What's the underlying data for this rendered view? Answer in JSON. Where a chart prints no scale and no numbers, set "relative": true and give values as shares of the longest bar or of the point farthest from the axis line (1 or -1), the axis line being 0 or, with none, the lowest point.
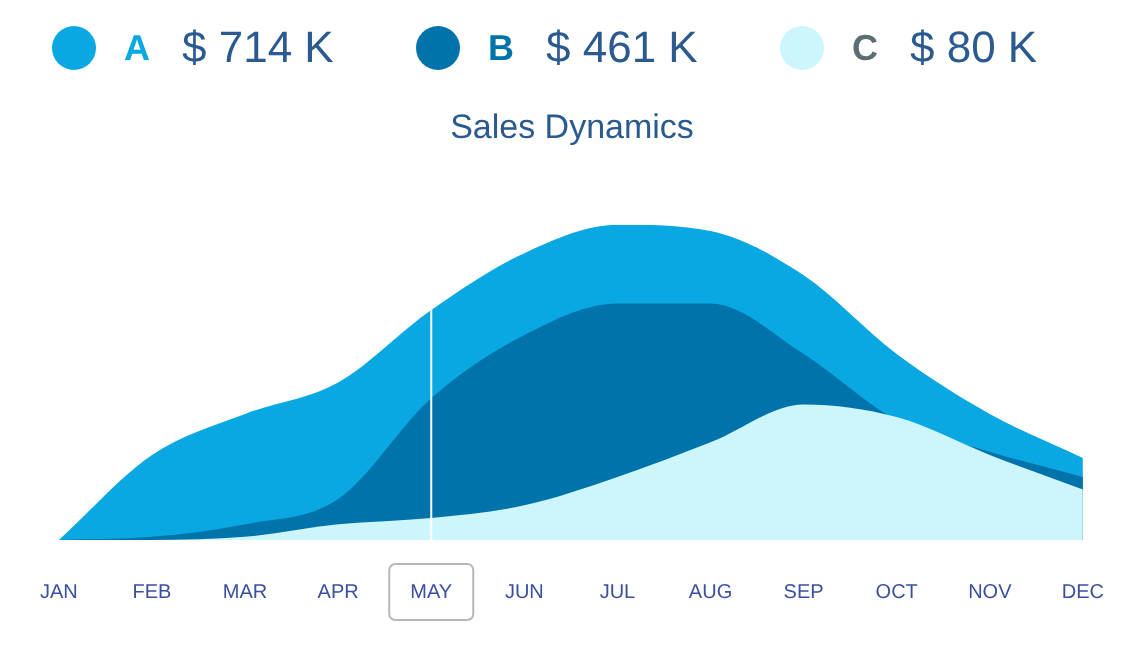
{
  "chart_data": {
    "type": "area",
    "title": "Sales Dynamics",
    "relative": true,
    "legend": "top",
    "grid": false,
    "categories": [
      "JAN",
      "FEB",
      "MAR",
      "APR",
      "MAY",
      "JUN",
      "JUL",
      "AUG",
      "SEP",
      "OCT",
      "NOV",
      "DEC"
    ],
    "series": [
      {
        "name": "A",
        "color": "#0aa8e2",
        "values": [
          0,
          0.27,
          0.4,
          0.5,
          0.73,
          0.91,
          1.0,
          0.98,
          0.84,
          0.59,
          0.4,
          0.26
        ]
      },
      {
        "name": "B",
        "color": "#0073aa",
        "values": [
          0,
          0.01,
          0.05,
          0.13,
          0.45,
          0.65,
          0.75,
          0.75,
          0.59,
          0.38,
          0.28,
          0.2
        ]
      },
      {
        "name": "C",
        "color": "#ccf5fc",
        "values": [
          0,
          0,
          0.01,
          0.05,
          0.07,
          0.11,
          0.2,
          0.31,
          0.43,
          0.39,
          0.27,
          0.16
        ]
      }
    ],
    "annotations": [
      "$ 714 K",
      "$ 461 K",
      "$ 80 K"
    ],
    "ref_lines": [
      {
        "axis": "x",
        "value": "MAY",
        "color": "#ffffff"
      }
    ]
  }
}
